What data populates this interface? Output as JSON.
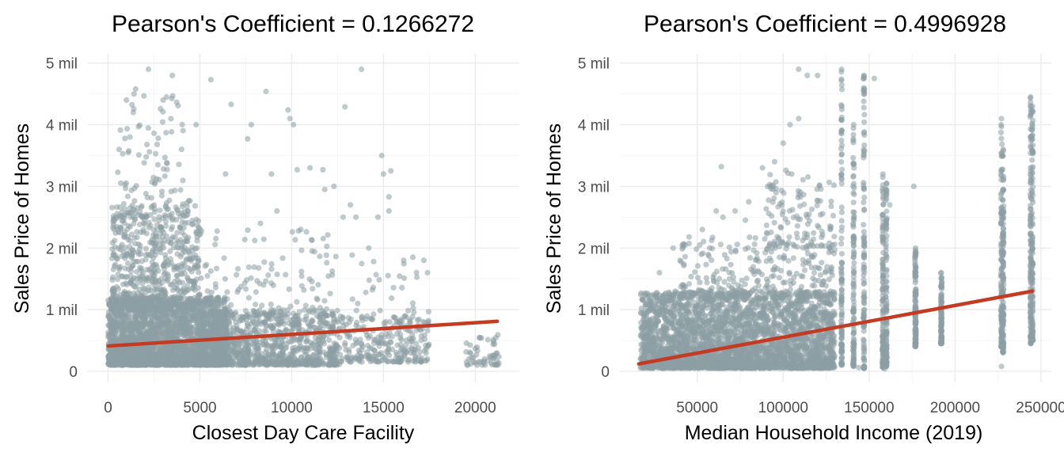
{
  "chart_data": [
    {
      "type": "scatter",
      "title": "Pearson's Coefficient = 0.1266272",
      "xlabel": "Closest Day Care Facility",
      "ylabel": "Sales Price of Homes",
      "xlim": [
        -1100,
        22400
      ],
      "ylim": [
        -180000,
        5150000
      ],
      "x_ticks": [
        0,
        5000,
        10000,
        15000,
        20000
      ],
      "x_tick_labels": [
        "0",
        "5000",
        "10000",
        "15000",
        "20000"
      ],
      "y_ticks": [
        0,
        1000000,
        2000000,
        3000000,
        4000000,
        5000000
      ],
      "y_tick_labels": [
        "0",
        "1 mil",
        "2 mil",
        "3 mil",
        "4 mil",
        "5 mil"
      ],
      "grid": true,
      "point_color": "#8c9ea4",
      "fit_color": "#c23b22",
      "fit_line": [
        [
          0,
          410000
        ],
        [
          21200,
          810000
        ]
      ],
      "clusters": [
        {
          "x": [
            0,
            6500
          ],
          "y": [
            100000,
            1200000
          ],
          "count": 2600
        },
        {
          "x": [
            200,
            5000
          ],
          "y": [
            1000000,
            2700000
          ],
          "count": 650
        },
        {
          "x": [
            500,
            4500
          ],
          "y": [
            2500000,
            4600000
          ],
          "count": 110
        },
        {
          "x": [
            5000,
            12500
          ],
          "y": [
            100000,
            1000000
          ],
          "count": 900
        },
        {
          "x": [
            5000,
            12000
          ],
          "y": [
            900000,
            2300000
          ],
          "count": 130
        },
        {
          "x": [
            12000,
            17500
          ],
          "y": [
            150000,
            900000
          ],
          "count": 280
        },
        {
          "x": [
            12000,
            17500
          ],
          "y": [
            800000,
            1900000
          ],
          "count": 45
        },
        {
          "x": [
            19500,
            21300
          ],
          "y": [
            100000,
            600000
          ],
          "count": 55
        }
      ],
      "notable_points": [
        {
          "x": 2200,
          "y": 4900000
        },
        {
          "x": 3500,
          "y": 4800000
        },
        {
          "x": 5600,
          "y": 4730000
        },
        {
          "x": 13800,
          "y": 4900000
        },
        {
          "x": 8600,
          "y": 4540000
        },
        {
          "x": 12900,
          "y": 4290000
        },
        {
          "x": 7800,
          "y": 4000000
        },
        {
          "x": 9900,
          "y": 4100000
        },
        {
          "x": 10100,
          "y": 4000000
        },
        {
          "x": 9800,
          "y": 4240000
        },
        {
          "x": 6700,
          "y": 4330000
        },
        {
          "x": 7600,
          "y": 3770000
        },
        {
          "x": 8900,
          "y": 3200000
        },
        {
          "x": 10300,
          "y": 3270000
        },
        {
          "x": 11000,
          "y": 3300000
        },
        {
          "x": 11700,
          "y": 3270000
        },
        {
          "x": 12300,
          "y": 3000000
        },
        {
          "x": 11800,
          "y": 2950000
        },
        {
          "x": 13200,
          "y": 2700000
        },
        {
          "x": 13500,
          "y": 2500000
        },
        {
          "x": 14900,
          "y": 3500000
        },
        {
          "x": 15000,
          "y": 3200000
        },
        {
          "x": 15400,
          "y": 3250000
        },
        {
          "x": 15300,
          "y": 2830000
        },
        {
          "x": 14700,
          "y": 2500000
        },
        {
          "x": 12800,
          "y": 2500000
        },
        {
          "x": 4800,
          "y": 4000000
        },
        {
          "x": 1000,
          "y": 4400000
        },
        {
          "x": 3000,
          "y": 4400000
        },
        {
          "x": 600,
          "y": 3600000
        },
        {
          "x": 1100,
          "y": 3550000
        },
        {
          "x": 4000,
          "y": 3600000
        },
        {
          "x": 6400,
          "y": 3200000
        },
        {
          "x": 14200,
          "y": 2000000
        },
        {
          "x": 15300,
          "y": 2600000
        },
        {
          "x": 17200,
          "y": 1800000
        },
        {
          "x": 16800,
          "y": 1600000
        },
        {
          "x": 17400,
          "y": 1600000
        },
        {
          "x": 16600,
          "y": 1850000
        },
        {
          "x": 16100,
          "y": 1800000
        },
        {
          "x": 12600,
          "y": 110000
        },
        {
          "x": 20300,
          "y": 150000
        },
        {
          "x": 10500,
          "y": 2300000
        },
        {
          "x": 8300,
          "y": 2400000
        },
        {
          "x": 9200,
          "y": 2600000
        }
      ]
    },
    {
      "type": "scatter",
      "title": "Pearson's Coefficient = 0.4996928",
      "xlabel": "Median Household Income (2019)",
      "ylabel": "Sales Price of Homes",
      "xlim": [
        5000,
        256000
      ],
      "ylim": [
        -180000,
        5150000
      ],
      "x_ticks": [
        50000,
        100000,
        150000,
        200000,
        250000
      ],
      "x_tick_labels": [
        "50000",
        "100000",
        "150000",
        "200000",
        "250000"
      ],
      "y_ticks": [
        0,
        1000000,
        2000000,
        3000000,
        4000000,
        5000000
      ],
      "y_tick_labels": [
        "0",
        "1 mil",
        "2 mil",
        "3 mil",
        "4 mil",
        "5 mil"
      ],
      "grid": true,
      "point_color": "#8c9ea4",
      "fit_color": "#c23b22",
      "fit_line": [
        [
          16000,
          120000
        ],
        [
          245000,
          1300000
        ]
      ],
      "columns": [
        {
          "x": 134000,
          "y": [
            100000,
            4900000
          ]
        },
        {
          "x": 141000,
          "y": [
            80000,
            4000000
          ]
        },
        {
          "x": 147000,
          "y": [
            50000,
            4800000
          ]
        },
        {
          "x": 158000,
          "y": [
            60000,
            3200000
          ]
        },
        {
          "x": 160000,
          "y": [
            80000,
            3050000
          ]
        },
        {
          "x": 177000,
          "y": [
            400000,
            2000000
          ]
        },
        {
          "x": 192000,
          "y": [
            450000,
            1600000
          ]
        },
        {
          "x": 227000,
          "y": [
            400000,
            4100000
          ]
        },
        {
          "x": 228000,
          "y": [
            300000,
            3600000
          ]
        },
        {
          "x": 244000,
          "y": [
            450000,
            4450000
          ]
        },
        {
          "x": 245000,
          "y": [
            500000,
            4300000
          ]
        }
      ],
      "clusters": [
        {
          "x": [
            17000,
            130000
          ],
          "y": [
            50000,
            1300000
          ],
          "count": 3200
        },
        {
          "x": [
            40000,
            130000
          ],
          "y": [
            1200000,
            2200000
          ],
          "count": 280
        },
        {
          "x": [
            90000,
            130000
          ],
          "y": [
            2000000,
            3300000
          ],
          "count": 120
        }
      ],
      "notable_points": [
        {
          "x": 109000,
          "y": 4900000
        },
        {
          "x": 114000,
          "y": 4800000
        },
        {
          "x": 120000,
          "y": 4800000
        },
        {
          "x": 104000,
          "y": 4000000
        },
        {
          "x": 109000,
          "y": 4100000
        },
        {
          "x": 100000,
          "y": 3700000
        },
        {
          "x": 105000,
          "y": 3200000
        },
        {
          "x": 95000,
          "y": 3400000
        },
        {
          "x": 88000,
          "y": 3300000
        },
        {
          "x": 64000,
          "y": 3320000
        },
        {
          "x": 72000,
          "y": 2600000
        },
        {
          "x": 80000,
          "y": 2750000
        },
        {
          "x": 78000,
          "y": 2450000
        },
        {
          "x": 65000,
          "y": 2500000
        },
        {
          "x": 53000,
          "y": 2300000
        },
        {
          "x": 61000,
          "y": 2600000
        },
        {
          "x": 153000,
          "y": 4750000
        },
        {
          "x": 162000,
          "y": 2700000
        },
        {
          "x": 176000,
          "y": 3000000
        },
        {
          "x": 134000,
          "y": 3900000
        },
        {
          "x": 147000,
          "y": 4500000
        },
        {
          "x": 244000,
          "y": 900000
        },
        {
          "x": 227000,
          "y": 80000
        },
        {
          "x": 28000,
          "y": 1600000
        },
        {
          "x": 36000,
          "y": 2000000
        },
        {
          "x": 40000,
          "y": 1800000
        },
        {
          "x": 19000,
          "y": 760000
        },
        {
          "x": 23000,
          "y": 750000
        },
        {
          "x": 159000,
          "y": 40000
        },
        {
          "x": 144000,
          "y": 60000
        }
      ]
    }
  ]
}
